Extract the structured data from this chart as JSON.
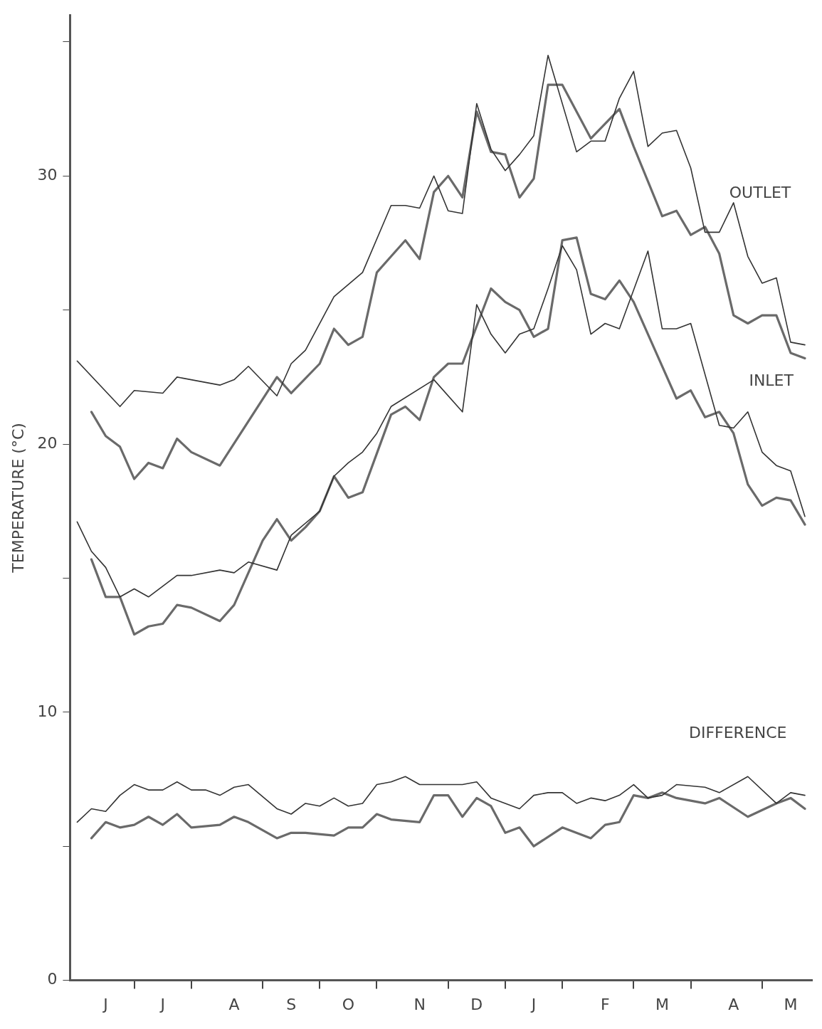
{
  "chart_data": {
    "type": "line",
    "ylabel": "TEMPERATURE (°C)",
    "ylim": [
      0,
      36
    ],
    "categories": [
      null,
      null,
      "J",
      null,
      null,
      null,
      "J",
      null,
      null,
      null,
      null,
      "A",
      null,
      null,
      null,
      "S",
      null,
      null,
      null,
      "O",
      null,
      null,
      null,
      null,
      "N",
      null,
      null,
      null,
      "D",
      null,
      null,
      null,
      "J",
      null,
      null,
      null,
      null,
      "F",
      null,
      null,
      null,
      "M",
      null,
      null,
      null,
      null,
      "A",
      null,
      null,
      null,
      "M",
      null
    ],
    "yticks": [
      0,
      {
        "value": 5,
        "label": null
      },
      10,
      {
        "value": 15,
        "label": null
      },
      20,
      {
        "value": 25,
        "label": null
      },
      30,
      {
        "value": 35,
        "label": null
      }
    ],
    "grid": false,
    "legend": false,
    "marker": "none",
    "line_style": "solid",
    "annotations": [
      "OUTLET",
      "INLET",
      "DIFFERENCE"
    ],
    "series": [
      {
        "color": "#333333",
        "values": [
          23.1,
          null,
          null,
          21.4,
          22.0,
          null,
          21.9,
          22.5,
          null,
          null,
          22.2,
          22.4,
          22.9,
          null,
          21.8,
          23.0,
          23.5,
          null,
          25.5,
          null,
          26.4,
          null,
          28.9,
          28.9,
          28.8,
          30.0,
          28.7,
          28.6,
          32.7,
          31.0,
          30.2,
          30.8,
          31.5,
          34.5,
          null,
          30.9,
          31.3,
          31.3,
          32.9,
          33.9,
          31.1,
          31.6,
          31.7,
          30.3,
          27.9,
          27.9,
          29.0,
          27.0,
          26.0,
          26.2,
          23.8,
          23.7
        ]
      },
      {
        "color": "#6a6a6a",
        "values": [
          null,
          21.2,
          20.3,
          19.9,
          18.7,
          19.3,
          19.1,
          20.2,
          19.7,
          null,
          19.2,
          null,
          null,
          null,
          22.5,
          21.9,
          null,
          23.0,
          24.3,
          23.7,
          24.0,
          26.4,
          27.0,
          27.6,
          26.9,
          29.4,
          30.0,
          29.2,
          32.4,
          30.9,
          30.8,
          29.2,
          29.9,
          33.4,
          33.4,
          null,
          31.4,
          null,
          32.5,
          31.1,
          null,
          28.5,
          28.7,
          27.8,
          28.1,
          27.1,
          24.8,
          24.5,
          24.8,
          24.8,
          23.4,
          23.2
        ]
      },
      {
        "color": "#333333",
        "values": [
          17.1,
          16.0,
          15.4,
          14.3,
          14.6,
          14.3,
          null,
          15.1,
          15.1,
          null,
          15.3,
          15.2,
          15.6,
          null,
          15.3,
          16.6,
          null,
          17.5,
          18.8,
          19.3,
          19.7,
          20.4,
          21.4,
          null,
          null,
          22.4,
          null,
          21.2,
          25.2,
          24.1,
          23.4,
          24.1,
          24.3,
          25.8,
          27.4,
          26.5,
          24.1,
          24.5,
          24.3,
          null,
          27.2,
          24.3,
          24.3,
          24.5,
          null,
          20.7,
          20.6,
          21.2,
          19.7,
          19.2,
          19.0,
          17.3
        ]
      },
      {
        "color": "#6a6a6a",
        "values": [
          null,
          15.7,
          14.3,
          14.3,
          12.9,
          13.2,
          13.3,
          14.0,
          13.9,
          null,
          13.4,
          14.0,
          null,
          16.4,
          17.2,
          16.4,
          16.9,
          17.5,
          18.8,
          18.0,
          18.2,
          null,
          21.1,
          21.4,
          20.9,
          22.5,
          23.0,
          23.0,
          null,
          25.8,
          25.3,
          25.0,
          24.0,
          24.3,
          27.6,
          27.7,
          25.6,
          25.4,
          26.1,
          25.3,
          null,
          null,
          21.7,
          22.0,
          21.0,
          21.2,
          20.4,
          18.5,
          17.7,
          18.0,
          17.9,
          17.0
        ]
      },
      {
        "color": "#333333",
        "values": [
          5.9,
          6.4,
          6.3,
          6.9,
          7.3,
          7.1,
          7.1,
          7.4,
          7.1,
          7.1,
          6.9,
          7.2,
          7.3,
          null,
          6.4,
          6.2,
          6.6,
          6.5,
          6.8,
          6.5,
          6.6,
          7.3,
          7.4,
          7.6,
          7.3,
          7.3,
          null,
          7.3,
          7.4,
          6.8,
          null,
          6.4,
          6.9,
          7.0,
          7.0,
          6.6,
          6.8,
          6.7,
          6.9,
          7.3,
          6.8,
          6.9,
          7.3,
          null,
          7.2,
          7.0,
          null,
          7.6,
          null,
          6.6,
          7.0,
          6.9
        ]
      },
      {
        "color": "#6a6a6a",
        "values": [
          null,
          5.3,
          5.9,
          5.7,
          5.8,
          6.1,
          5.8,
          6.2,
          5.7,
          null,
          5.8,
          6.1,
          5.9,
          null,
          5.3,
          5.5,
          5.5,
          null,
          5.4,
          5.7,
          5.7,
          6.2,
          6.0,
          null,
          5.9,
          6.9,
          6.9,
          6.1,
          6.8,
          6.5,
          5.5,
          5.7,
          5.0,
          null,
          5.7,
          null,
          5.3,
          5.8,
          5.9,
          6.9,
          6.8,
          7.0,
          6.8,
          null,
          6.6,
          6.8,
          null,
          6.1,
          null,
          6.6,
          6.8,
          6.4
        ]
      }
    ]
  }
}
